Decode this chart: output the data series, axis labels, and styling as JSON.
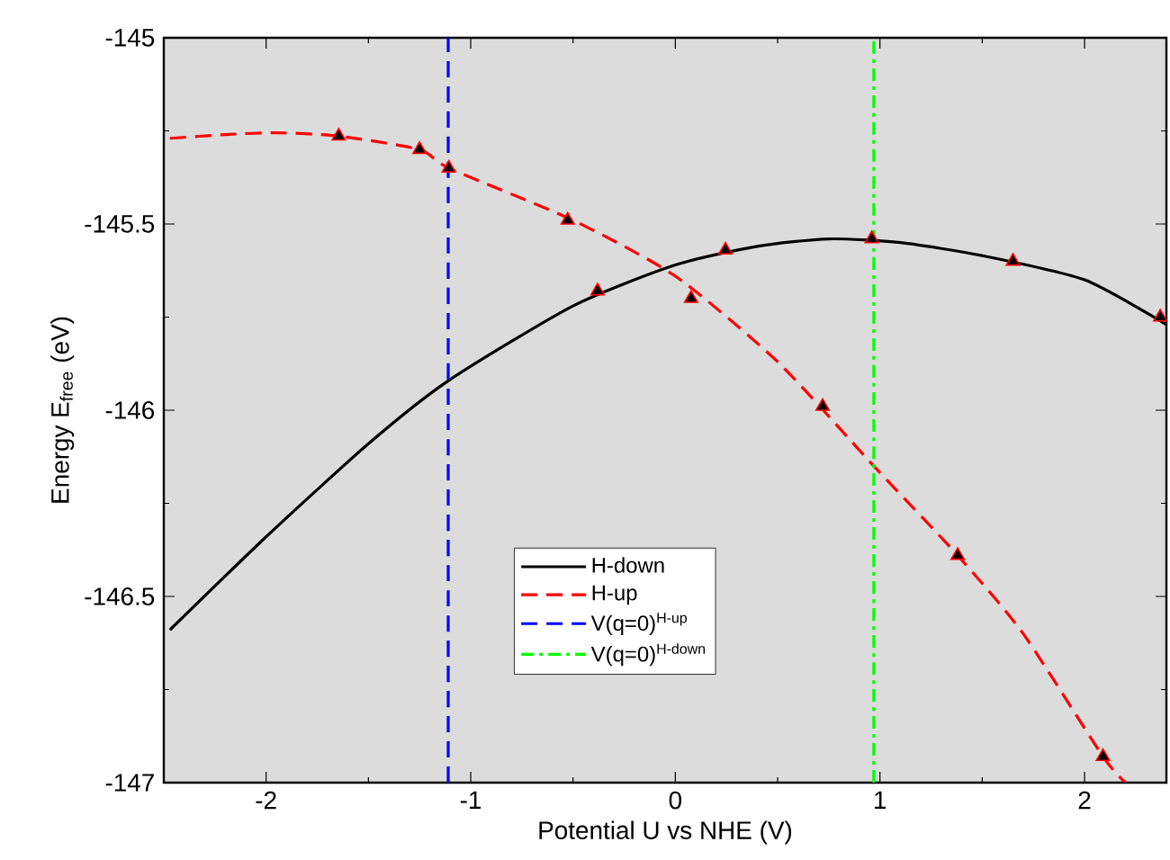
{
  "chart_data": {
    "type": "line",
    "xlabel": "Potential U vs NHE (V)",
    "ylabel": "Energy  E$_{free}$ (eV)",
    "xlim": [
      -2.5,
      2.4
    ],
    "ylim": [
      -147,
      -145
    ],
    "xticks": [
      -2,
      -1,
      0,
      1,
      2
    ],
    "yticks": [
      -147,
      -146.5,
      -146,
      -145.5,
      -145
    ],
    "grid": false,
    "legend": "bottom",
    "series": [
      {
        "name": "H-down",
        "color": "#000000",
        "line_style": "solid",
        "marker": "none",
        "x": [
          -2.47,
          -2,
          -1.5,
          -1.107,
          -0.5,
          0,
          0.4,
          0.75,
          1.1,
          1.5,
          2,
          2.4
        ],
        "values": [
          -146.59,
          -146.34,
          -146.09,
          -145.92,
          -145.72,
          -145.61,
          -145.56,
          -145.54,
          -145.55,
          -145.585,
          -145.65,
          -145.77
        ]
      },
      {
        "name": "H-up",
        "color": "#ff0000",
        "line_style": "dashed",
        "marker": "none",
        "x": [
          -2.47,
          -2.2,
          -1.95,
          -1.645,
          -1.25,
          -1.107,
          -0.5,
          0,
          0.5,
          0.97,
          1.38,
          1.7,
          2.09,
          2.2
        ],
        "values": [
          -145.27,
          -145.26,
          -145.255,
          -145.264,
          -145.3,
          -145.35,
          -145.49,
          -145.64,
          -145.87,
          -146.15,
          -146.39,
          -146.6,
          -146.93,
          -147.0
        ]
      },
      {
        "type": "scatter",
        "color": "#000000",
        "marker": "triangle",
        "x": [
          -1.645,
          -1.25,
          -1.107,
          -0.526,
          0.077,
          0.72,
          1.38,
          2.09
        ],
        "values": [
          -145.264,
          -145.3,
          -145.35,
          -145.49,
          -145.7,
          -145.99,
          -146.39,
          -146.93
        ]
      },
      {
        "type": "scatter",
        "color": "#000000",
        "marker": "triangle",
        "x": [
          -0.38,
          0.245,
          0.96,
          1.65,
          2.37
        ],
        "values": [
          -145.68,
          -145.57,
          -145.54,
          -145.6,
          -145.75
        ]
      },
      {
        "name": "V(q=0)$^{H-up}$",
        "color": "#0000ff",
        "line_style": "dashed",
        "marker": "none",
        "x": [
          -1.11,
          -1.11
        ],
        "values": [
          -147,
          -145
        ]
      },
      {
        "name": "V(q=0)$^{H-down}$",
        "color": "#00ff00",
        "line_style": "dashdot",
        "marker": "none",
        "x": [
          0.97,
          0.97
        ],
        "values": [
          -147,
          -145
        ]
      }
    ]
  }
}
